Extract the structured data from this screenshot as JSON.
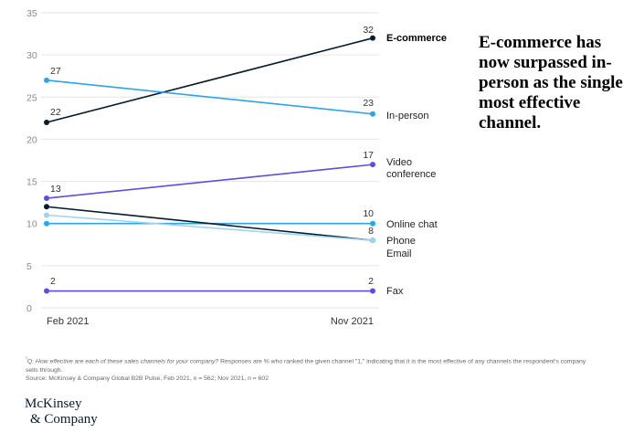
{
  "chart_data": {
    "type": "line",
    "categories": [
      "Feb 2021",
      "Nov 2021"
    ],
    "ylim": [
      0,
      35
    ],
    "yticks": [
      0,
      5,
      10,
      15,
      20,
      25,
      30,
      35
    ],
    "grid": true,
    "series": [
      {
        "name": "E-commerce",
        "values": [
          22,
          32
        ],
        "color": "#051c2c",
        "labels": [
          "22",
          "32"
        ],
        "bold": true
      },
      {
        "name": "In-person",
        "values": [
          27,
          23
        ],
        "color": "#2ea3e8",
        "labels": [
          "27",
          "23"
        ]
      },
      {
        "name": "Video conference",
        "values": [
          13,
          17
        ],
        "color": "#5a4fe0",
        "labels": [
          "13",
          "17"
        ]
      },
      {
        "name": "Online chat",
        "values": [
          10,
          10
        ],
        "color": "#2ea3e8",
        "labels": [
          "",
          "10"
        ]
      },
      {
        "name": "Phone",
        "values": [
          12,
          8
        ],
        "color": "#051c2c",
        "labels": [
          "",
          ""
        ]
      },
      {
        "name": "Email",
        "values": [
          11,
          8
        ],
        "color": "#9fd3f0",
        "labels": [
          "",
          "8"
        ]
      },
      {
        "name": "Fax",
        "values": [
          2,
          2
        ],
        "color": "#5a4fe0",
        "labels": [
          "2",
          "2"
        ]
      }
    ]
  },
  "headline": "E-commerce has now surpassed in-person as the single most effective channel.",
  "footnote": {
    "marker": "¹",
    "prefix": "Q: ",
    "question": "How effective are each of these sales channels for your company?",
    "body": " Responses are % who ranked the given channel \"1,\" indicating that it is the most effective of any channels the respondent's company sells through.",
    "source": "Source: McKinsey & Company Global B2B Pulse, Feb 2021, n = 562; Nov 2021, n = 602"
  },
  "logo": {
    "line1": "McKinsey",
    "line2": "& Company"
  }
}
